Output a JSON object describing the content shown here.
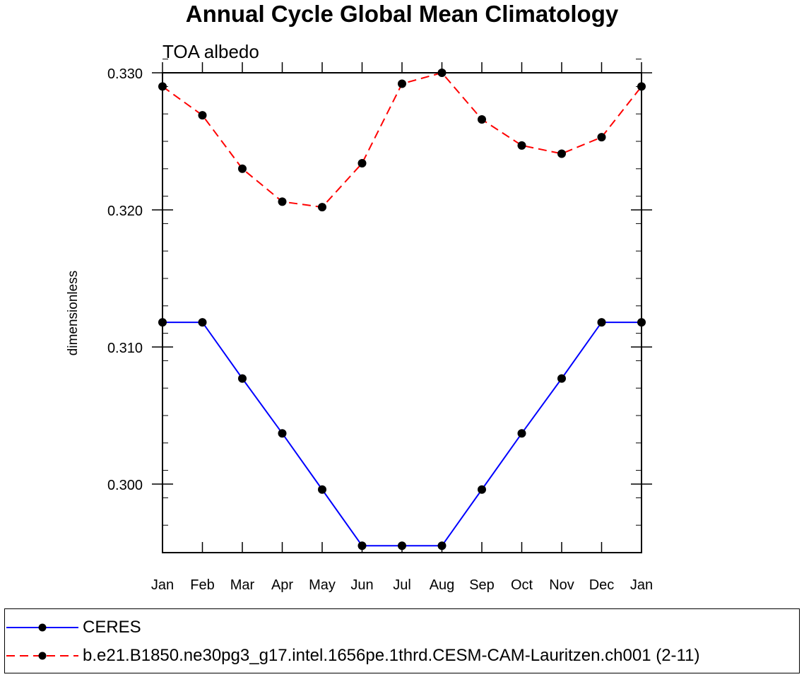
{
  "chart_data": {
    "type": "line",
    "title": "Annual Cycle Global Mean Climatology",
    "subtitle": "TOA albedo",
    "xlabel": "",
    "ylabel": "dimensionless",
    "categories": [
      "Jan",
      "Feb",
      "Mar",
      "Apr",
      "May",
      "Jun",
      "Jul",
      "Aug",
      "Sep",
      "Oct",
      "Nov",
      "Dec",
      "Jan"
    ],
    "ylim": [
      0.295,
      0.33
    ],
    "yticks": [
      0.3,
      0.31,
      0.32,
      0.33
    ],
    "ytick_labels": [
      "0.300",
      "0.310",
      "0.320",
      "0.330"
    ],
    "yminor_step": 0.002,
    "grid": false,
    "legend_position": "bottom",
    "series": [
      {
        "name": "CERES",
        "color": "#0000ff",
        "dash": "solid",
        "marker": "filled-circle",
        "values": [
          0.3118,
          0.3118,
          0.3077,
          0.3037,
          0.2996,
          0.2955,
          0.2955,
          0.2955,
          0.2996,
          0.3037,
          0.3077,
          0.3118,
          0.3118
        ]
      },
      {
        "name": "b.e21.B1850.ne30pg3_g17.intel.1656pe.1thrd.CESM-CAM-Lauritzen.ch001 (2-11)",
        "color": "#ff0000",
        "dash": "dashed",
        "marker": "filled-circle",
        "values": [
          0.329,
          0.3269,
          0.323,
          0.3206,
          0.3202,
          0.3234,
          0.3292,
          0.33,
          0.3266,
          0.3247,
          0.3241,
          0.3253,
          0.329
        ]
      }
    ]
  }
}
